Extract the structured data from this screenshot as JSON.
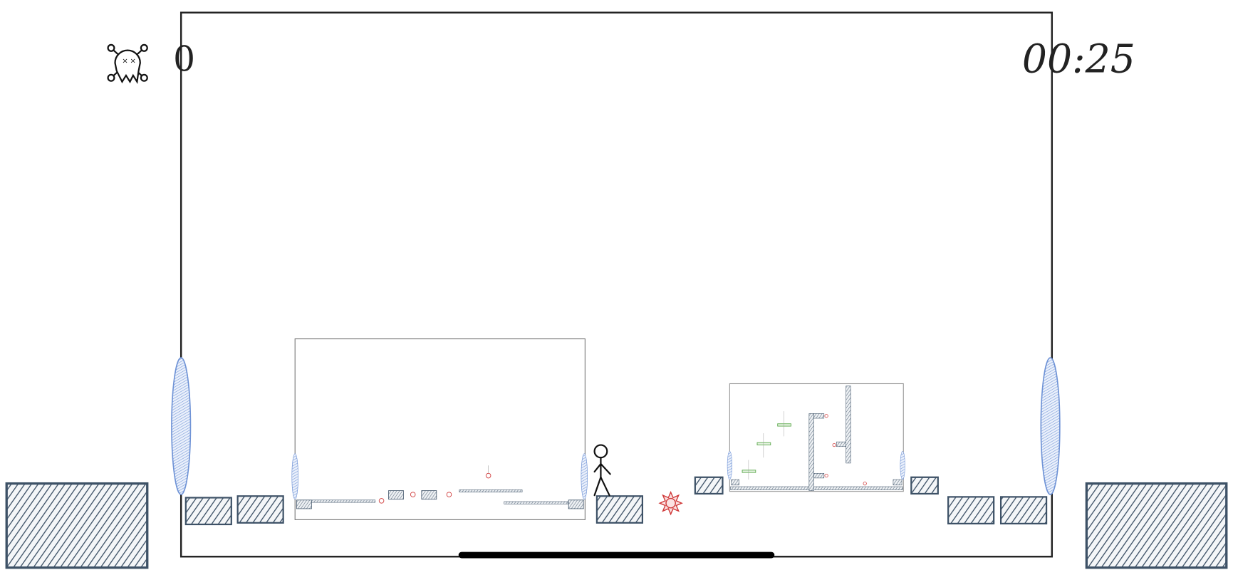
{
  "hud": {
    "deaths_icon": "skull-crossbones-icon",
    "deaths": "0",
    "timer": "00:25"
  },
  "colors": {
    "block": "#3d5166",
    "portal": "#6f93d6",
    "hazard": "#d03a3a",
    "goal": "#5aa84a",
    "frame": "#222222"
  }
}
